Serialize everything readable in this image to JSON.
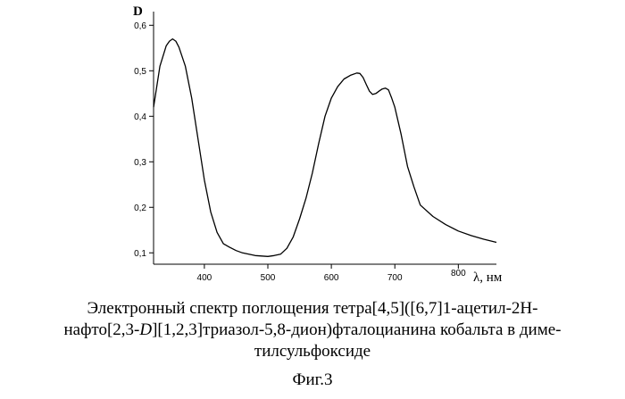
{
  "chart_data": {
    "type": "line",
    "ylabel": "D",
    "xlabel": "λ, нм",
    "xlim": [
      320,
      860
    ],
    "ylim": [
      0.075,
      0.63
    ],
    "x_ticks": [
      400,
      500,
      600,
      700,
      800
    ],
    "x_tick_labels": [
      "400",
      "500",
      "600",
      "700",
      "800"
    ],
    "y_ticks": [
      0.1,
      0.2,
      0.3,
      0.4,
      0.5,
      0.6
    ],
    "y_tick_labels": [
      "0,1",
      "0,2",
      "0,3",
      "0,4",
      "0,5",
      "0,6"
    ],
    "grid": false,
    "series": [
      {
        "color": "#000000",
        "x": [
          320,
          330,
          340,
          345,
          350,
          355,
          360,
          370,
          380,
          390,
          400,
          410,
          420,
          430,
          440,
          450,
          460,
          470,
          480,
          490,
          500,
          510,
          520,
          530,
          540,
          550,
          560,
          570,
          580,
          590,
          600,
          610,
          620,
          630,
          640,
          645,
          650,
          655,
          660,
          665,
          670,
          675,
          680,
          685,
          690,
          695,
          700,
          710,
          720,
          730,
          740,
          760,
          780,
          800,
          820,
          840,
          860
        ],
        "y": [
          0.42,
          0.51,
          0.555,
          0.565,
          0.57,
          0.565,
          0.552,
          0.51,
          0.44,
          0.35,
          0.26,
          0.19,
          0.145,
          0.12,
          0.112,
          0.105,
          0.1,
          0.097,
          0.094,
          0.093,
          0.092,
          0.094,
          0.097,
          0.11,
          0.135,
          0.175,
          0.22,
          0.275,
          0.34,
          0.4,
          0.44,
          0.465,
          0.482,
          0.49,
          0.495,
          0.494,
          0.485,
          0.47,
          0.455,
          0.448,
          0.45,
          0.455,
          0.46,
          0.462,
          0.458,
          0.44,
          0.42,
          0.36,
          0.29,
          0.245,
          0.205,
          0.18,
          0.162,
          0.148,
          0.138,
          0.13,
          0.123
        ]
      }
    ]
  },
  "caption": {
    "line1": "Электронный спектр поглощения тетра[4,5]([6,7]1-ацетил-2H-",
    "line2_a": "нафто[2,3-",
    "line2_italic": "D",
    "line2_b": "][1,2,3]триазол-5,8-дион)фталоцианина кобальта в диме-",
    "line3": "тилсульфоксиде"
  },
  "figure_label": "Фиг.3"
}
